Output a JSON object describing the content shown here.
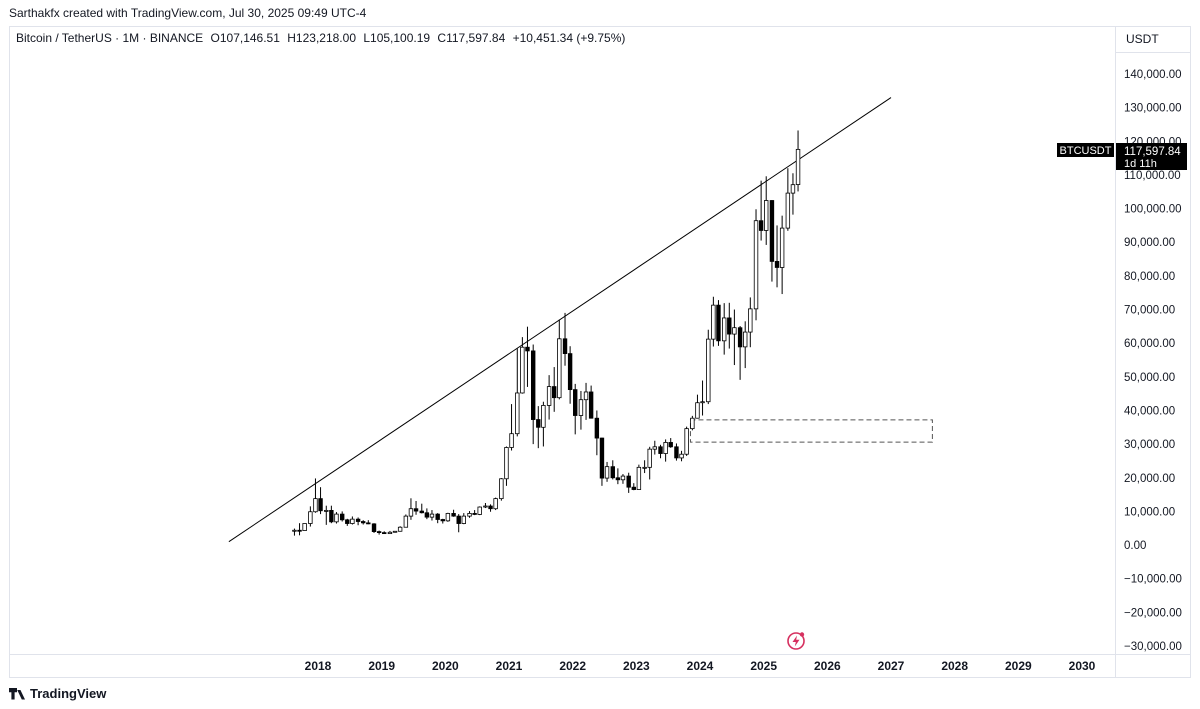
{
  "header": {
    "credit": "Sarthakfx created with TradingView.com, Jul 30, 2025 09:49 UTC-4"
  },
  "symbol": {
    "name": "Bitcoin / TetherUS · 1M · BINANCE",
    "open": "O107,146.51",
    "high": "H123,218.00",
    "low": "L105,100.19",
    "close": "C117,597.84",
    "change": "+10,451.34 (+9.75%)"
  },
  "price_axis": {
    "currency": "USDT"
  },
  "price_label": {
    "ticker": "BTCUSDT",
    "price": "117,597.84",
    "countdown": "1d 11h"
  },
  "footer": {
    "brand": "TradingView"
  },
  "colors": {
    "candle_up": "#ffffff",
    "candle_down": "#000000",
    "outline": "#000000",
    "label_bg": "#000000"
  },
  "chart_data": {
    "type": "candlestick",
    "timeframe": "1M",
    "x_ticks": [
      "2018",
      "2019",
      "2020",
      "2021",
      "2022",
      "2023",
      "2024",
      "2025",
      "2026",
      "2027",
      "2028",
      "2029",
      "2030"
    ],
    "y_ticks": [
      140000,
      130000,
      120000,
      110000,
      100000,
      90000,
      80000,
      70000,
      60000,
      50000,
      40000,
      30000,
      20000,
      10000,
      0,
      -10000,
      -20000,
      -30000
    ],
    "y_tick_labels": [
      "140,000.00",
      "130,000.00",
      "120,000.00",
      "110,000.00",
      "100,000.00",
      "90,000.00",
      "80,000.00",
      "70,000.00",
      "60,000.00",
      "50,000.00",
      "40,000.00",
      "30,000.00",
      "20,000.00",
      "10,000.00",
      "0.00",
      "−10,000.00",
      "−20,000.00",
      "−30,000.00"
    ],
    "ylim": [
      -30000,
      140000
    ],
    "xlim": [
      2016.0,
      2030.5
    ],
    "candles": [
      {
        "t": 2017.63,
        "o": 4300,
        "h": 4900,
        "l": 2800,
        "c": 4400
      },
      {
        "t": 2017.71,
        "o": 4400,
        "h": 6500,
        "l": 2900,
        "c": 4300
      },
      {
        "t": 2017.79,
        "o": 4300,
        "h": 6400,
        "l": 4200,
        "c": 6400
      },
      {
        "t": 2017.88,
        "o": 6400,
        "h": 11500,
        "l": 5500,
        "c": 9900
      },
      {
        "t": 2017.96,
        "o": 9900,
        "h": 19800,
        "l": 9600,
        "c": 13800
      },
      {
        "t": 2018.04,
        "o": 13800,
        "h": 17200,
        "l": 9200,
        "c": 10200
      },
      {
        "t": 2018.13,
        "o": 10200,
        "h": 11700,
        "l": 6000,
        "c": 10300
      },
      {
        "t": 2018.21,
        "o": 10300,
        "h": 11700,
        "l": 6500,
        "c": 6900
      },
      {
        "t": 2018.29,
        "o": 6900,
        "h": 9800,
        "l": 6400,
        "c": 9200
      },
      {
        "t": 2018.38,
        "o": 9200,
        "h": 10000,
        "l": 7000,
        "c": 7500
      },
      {
        "t": 2018.46,
        "o": 7500,
        "h": 7800,
        "l": 5700,
        "c": 6400
      },
      {
        "t": 2018.54,
        "o": 6400,
        "h": 8500,
        "l": 6100,
        "c": 7700
      },
      {
        "t": 2018.63,
        "o": 7700,
        "h": 8200,
        "l": 5900,
        "c": 7000
      },
      {
        "t": 2018.71,
        "o": 7000,
        "h": 7400,
        "l": 6100,
        "c": 6600
      },
      {
        "t": 2018.79,
        "o": 6600,
        "h": 7400,
        "l": 6200,
        "c": 6300
      },
      {
        "t": 2018.88,
        "o": 6300,
        "h": 6500,
        "l": 3600,
        "c": 4000
      },
      {
        "t": 2018.96,
        "o": 4000,
        "h": 4300,
        "l": 3100,
        "c": 3700
      },
      {
        "t": 2019.04,
        "o": 3700,
        "h": 4100,
        "l": 3400,
        "c": 3400
      },
      {
        "t": 2019.13,
        "o": 3400,
        "h": 4200,
        "l": 3300,
        "c": 3800
      },
      {
        "t": 2019.21,
        "o": 3800,
        "h": 4100,
        "l": 3700,
        "c": 4100
      },
      {
        "t": 2019.29,
        "o": 4100,
        "h": 5600,
        "l": 4000,
        "c": 5300
      },
      {
        "t": 2019.38,
        "o": 5300,
        "h": 9100,
        "l": 5300,
        "c": 8600
      },
      {
        "t": 2019.46,
        "o": 8600,
        "h": 13900,
        "l": 7500,
        "c": 10800
      },
      {
        "t": 2019.54,
        "o": 10800,
        "h": 13100,
        "l": 9000,
        "c": 10100
      },
      {
        "t": 2019.63,
        "o": 10100,
        "h": 12300,
        "l": 9400,
        "c": 9600
      },
      {
        "t": 2019.71,
        "o": 9600,
        "h": 10900,
        "l": 7700,
        "c": 8300
      },
      {
        "t": 2019.79,
        "o": 8300,
        "h": 10400,
        "l": 7300,
        "c": 9200
      },
      {
        "t": 2019.88,
        "o": 9200,
        "h": 9500,
        "l": 6500,
        "c": 7600
      },
      {
        "t": 2019.96,
        "o": 7600,
        "h": 7800,
        "l": 6400,
        "c": 7200
      },
      {
        "t": 2020.04,
        "o": 7200,
        "h": 9600,
        "l": 6900,
        "c": 9400
      },
      {
        "t": 2020.13,
        "o": 9400,
        "h": 10500,
        "l": 8400,
        "c": 8600
      },
      {
        "t": 2020.21,
        "o": 8600,
        "h": 9200,
        "l": 3800,
        "c": 6400
      },
      {
        "t": 2020.29,
        "o": 6400,
        "h": 9500,
        "l": 6200,
        "c": 8600
      },
      {
        "t": 2020.38,
        "o": 8600,
        "h": 10100,
        "l": 8100,
        "c": 9400
      },
      {
        "t": 2020.46,
        "o": 9400,
        "h": 10400,
        "l": 8900,
        "c": 9100
      },
      {
        "t": 2020.54,
        "o": 9100,
        "h": 11500,
        "l": 8900,
        "c": 11300
      },
      {
        "t": 2020.63,
        "o": 11300,
        "h": 12500,
        "l": 11000,
        "c": 11600
      },
      {
        "t": 2020.71,
        "o": 11600,
        "h": 12100,
        "l": 9900,
        "c": 10800
      },
      {
        "t": 2020.79,
        "o": 10800,
        "h": 14100,
        "l": 10400,
        "c": 13800
      },
      {
        "t": 2020.88,
        "o": 13800,
        "h": 19900,
        "l": 13200,
        "c": 19700
      },
      {
        "t": 2020.96,
        "o": 19700,
        "h": 29300,
        "l": 17600,
        "c": 29000
      },
      {
        "t": 2021.04,
        "o": 29000,
        "h": 41900,
        "l": 28100,
        "c": 33100
      },
      {
        "t": 2021.13,
        "o": 33100,
        "h": 58400,
        "l": 32300,
        "c": 45200
      },
      {
        "t": 2021.21,
        "o": 45200,
        "h": 61800,
        "l": 45000,
        "c": 58800
      },
      {
        "t": 2021.29,
        "o": 58800,
        "h": 64900,
        "l": 47000,
        "c": 57700
      },
      {
        "t": 2021.38,
        "o": 57700,
        "h": 59600,
        "l": 30000,
        "c": 37300
      },
      {
        "t": 2021.46,
        "o": 37300,
        "h": 41300,
        "l": 28800,
        "c": 35000
      },
      {
        "t": 2021.54,
        "o": 35000,
        "h": 42600,
        "l": 29300,
        "c": 41500
      },
      {
        "t": 2021.63,
        "o": 41500,
        "h": 50500,
        "l": 37300,
        "c": 47100
      },
      {
        "t": 2021.71,
        "o": 47100,
        "h": 52900,
        "l": 39600,
        "c": 43800
      },
      {
        "t": 2021.79,
        "o": 43800,
        "h": 67000,
        "l": 43300,
        "c": 61300
      },
      {
        "t": 2021.88,
        "o": 61300,
        "h": 69000,
        "l": 53300,
        "c": 56900
      },
      {
        "t": 2021.96,
        "o": 56900,
        "h": 59100,
        "l": 42000,
        "c": 46200
      },
      {
        "t": 2022.04,
        "o": 46200,
        "h": 47900,
        "l": 32900,
        "c": 38500
      },
      {
        "t": 2022.13,
        "o": 38500,
        "h": 45800,
        "l": 34300,
        "c": 43200
      },
      {
        "t": 2022.21,
        "o": 43200,
        "h": 48200,
        "l": 37200,
        "c": 45500
      },
      {
        "t": 2022.29,
        "o": 45500,
        "h": 47400,
        "l": 37600,
        "c": 37700
      },
      {
        "t": 2022.38,
        "o": 37700,
        "h": 40000,
        "l": 26700,
        "c": 31800
      },
      {
        "t": 2022.46,
        "o": 31800,
        "h": 31900,
        "l": 17600,
        "c": 19900
      },
      {
        "t": 2022.54,
        "o": 19900,
        "h": 24700,
        "l": 18800,
        "c": 23300
      },
      {
        "t": 2022.63,
        "o": 23300,
        "h": 25200,
        "l": 19500,
        "c": 20000
      },
      {
        "t": 2022.71,
        "o": 20000,
        "h": 22800,
        "l": 18100,
        "c": 19400
      },
      {
        "t": 2022.79,
        "o": 19400,
        "h": 21100,
        "l": 18200,
        "c": 20500
      },
      {
        "t": 2022.88,
        "o": 20500,
        "h": 21500,
        "l": 15500,
        "c": 17200
      },
      {
        "t": 2022.96,
        "o": 17200,
        "h": 18400,
        "l": 16300,
        "c": 16500
      },
      {
        "t": 2023.04,
        "o": 16500,
        "h": 23900,
        "l": 16500,
        "c": 23100
      },
      {
        "t": 2023.13,
        "o": 23100,
        "h": 25200,
        "l": 21400,
        "c": 23100
      },
      {
        "t": 2023.21,
        "o": 23100,
        "h": 29200,
        "l": 19500,
        "c": 28500
      },
      {
        "t": 2023.29,
        "o": 28500,
        "h": 31000,
        "l": 26900,
        "c": 29200
      },
      {
        "t": 2023.38,
        "o": 29200,
        "h": 29800,
        "l": 25800,
        "c": 27200
      },
      {
        "t": 2023.46,
        "o": 27200,
        "h": 31400,
        "l": 24800,
        "c": 30500
      },
      {
        "t": 2023.54,
        "o": 30500,
        "h": 31800,
        "l": 28900,
        "c": 29200
      },
      {
        "t": 2023.63,
        "o": 29200,
        "h": 30200,
        "l": 25100,
        "c": 25900
      },
      {
        "t": 2023.71,
        "o": 25900,
        "h": 28000,
        "l": 24900,
        "c": 27000
      },
      {
        "t": 2023.79,
        "o": 27000,
        "h": 35200,
        "l": 26500,
        "c": 34600
      },
      {
        "t": 2023.88,
        "o": 34600,
        "h": 38400,
        "l": 34100,
        "c": 37700
      },
      {
        "t": 2023.96,
        "o": 37700,
        "h": 44700,
        "l": 37600,
        "c": 42300
      },
      {
        "t": 2024.04,
        "o": 42300,
        "h": 48900,
        "l": 38500,
        "c": 42600
      },
      {
        "t": 2024.13,
        "o": 42600,
        "h": 64000,
        "l": 41900,
        "c": 61200
      },
      {
        "t": 2024.21,
        "o": 61200,
        "h": 73800,
        "l": 59000,
        "c": 71300
      },
      {
        "t": 2024.29,
        "o": 71300,
        "h": 72800,
        "l": 59200,
        "c": 60700
      },
      {
        "t": 2024.38,
        "o": 60700,
        "h": 71900,
        "l": 56600,
        "c": 67500
      },
      {
        "t": 2024.46,
        "o": 67500,
        "h": 72000,
        "l": 58400,
        "c": 62700
      },
      {
        "t": 2024.54,
        "o": 62700,
        "h": 70000,
        "l": 53500,
        "c": 64600
      },
      {
        "t": 2024.63,
        "o": 64600,
        "h": 65100,
        "l": 49100,
        "c": 58900
      },
      {
        "t": 2024.71,
        "o": 58900,
        "h": 66500,
        "l": 52600,
        "c": 63300
      },
      {
        "t": 2024.79,
        "o": 63300,
        "h": 73600,
        "l": 58800,
        "c": 70200
      },
      {
        "t": 2024.88,
        "o": 70200,
        "h": 99800,
        "l": 66800,
        "c": 96400
      },
      {
        "t": 2024.96,
        "o": 96400,
        "h": 108300,
        "l": 90500,
        "c": 93500
      },
      {
        "t": 2025.04,
        "o": 93500,
        "h": 109600,
        "l": 89200,
        "c": 102400
      },
      {
        "t": 2025.13,
        "o": 102400,
        "h": 102500,
        "l": 78300,
        "c": 84300
      },
      {
        "t": 2025.21,
        "o": 84300,
        "h": 95000,
        "l": 76600,
        "c": 82500
      },
      {
        "t": 2025.29,
        "o": 82500,
        "h": 97900,
        "l": 74600,
        "c": 94200
      },
      {
        "t": 2025.38,
        "o": 94200,
        "h": 112000,
        "l": 93400,
        "c": 104600
      },
      {
        "t": 2025.46,
        "o": 104600,
        "h": 110500,
        "l": 98200,
        "c": 107100
      },
      {
        "t": 2025.54,
        "o": 107146.51,
        "h": 123218.0,
        "l": 105100.19,
        "c": 117597.84
      }
    ],
    "trendline": {
      "start": {
        "t": 2016.6,
        "price": 1000
      },
      "end": {
        "t": 2027.0,
        "price": 133000
      }
    },
    "zone": {
      "t_start": 2023.85,
      "t_end": 2027.65,
      "price_top": 37200,
      "price_bottom": 30600
    }
  }
}
